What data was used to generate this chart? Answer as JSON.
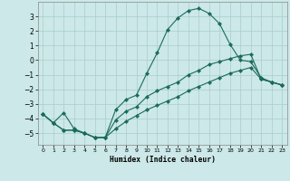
{
  "xlabel": "Humidex (Indice chaleur)",
  "xlim": [
    -0.5,
    23.5
  ],
  "ylim": [
    -5.8,
    4.0
  ],
  "yticks": [
    3,
    2,
    1,
    0,
    -1,
    -2,
    -3,
    -4,
    -5
  ],
  "xticks": [
    0,
    1,
    2,
    3,
    4,
    5,
    6,
    7,
    8,
    9,
    10,
    11,
    12,
    13,
    14,
    15,
    16,
    17,
    18,
    19,
    20,
    21,
    22,
    23
  ],
  "background_color": "#cce8e8",
  "grid_color": "#aacccc",
  "line_color": "#1a6b5a",
  "curve1_x": [
    0,
    1,
    2,
    3,
    4,
    5,
    6,
    7,
    8,
    9,
    10,
    11,
    12,
    13,
    14,
    15,
    16,
    17,
    18,
    19,
    20,
    21,
    22,
    23
  ],
  "curve1_y": [
    -3.7,
    -4.3,
    -3.6,
    -4.7,
    -5.0,
    -5.3,
    -5.3,
    -3.4,
    -2.7,
    -2.4,
    -0.9,
    0.5,
    2.1,
    2.9,
    3.4,
    3.55,
    3.2,
    2.5,
    1.1,
    0.0,
    -0.1,
    -1.2,
    -1.5,
    -1.7
  ],
  "curve2_x": [
    0,
    1,
    2,
    3,
    4,
    5,
    6,
    7,
    8,
    9,
    10,
    11,
    12,
    13,
    14,
    15,
    16,
    17,
    18,
    19,
    20,
    21,
    22,
    23
  ],
  "curve2_y": [
    -3.7,
    -4.3,
    -4.8,
    -4.8,
    -5.0,
    -5.3,
    -5.3,
    -4.1,
    -3.5,
    -3.2,
    -2.5,
    -2.1,
    -1.8,
    -1.5,
    -1.0,
    -0.7,
    -0.3,
    -0.1,
    0.1,
    0.3,
    0.4,
    -1.3,
    -1.5,
    -1.7
  ],
  "curve3_x": [
    0,
    1,
    2,
    3,
    4,
    5,
    6,
    7,
    8,
    9,
    10,
    11,
    12,
    13,
    14,
    15,
    16,
    17,
    18,
    19,
    20,
    21,
    22,
    23
  ],
  "curve3_y": [
    -3.7,
    -4.3,
    -4.8,
    -4.8,
    -5.0,
    -5.3,
    -5.3,
    -4.7,
    -4.2,
    -3.8,
    -3.4,
    -3.1,
    -2.8,
    -2.5,
    -2.1,
    -1.8,
    -1.5,
    -1.2,
    -0.9,
    -0.7,
    -0.5,
    -1.3,
    -1.5,
    -1.7
  ]
}
